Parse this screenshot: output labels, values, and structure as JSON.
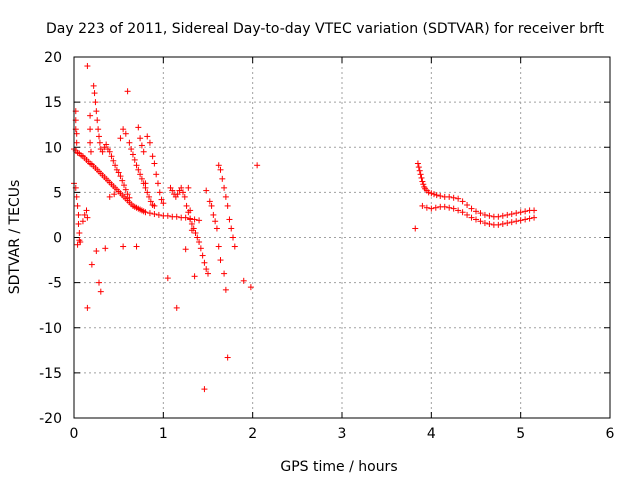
{
  "chart_data": {
    "type": "scatter",
    "title": "Day 223 of 2011, Sidereal Day-to-day VTEC variation (SDTVAR) for receiver brft",
    "xlabel": "GPS time / hours",
    "ylabel": "SDTVAR / TECUs",
    "xlim": [
      0,
      6
    ],
    "ylim": [
      -20,
      20
    ],
    "xticks": [
      0,
      1,
      2,
      3,
      4,
      5,
      6
    ],
    "yticks": [
      -20,
      -15,
      -10,
      -5,
      0,
      5,
      10,
      15,
      20
    ],
    "grid": true,
    "marker": "+",
    "color": "#ff0000",
    "series": [
      {
        "name": "SDTVAR",
        "points": [
          [
            0.0,
            9.8
          ],
          [
            0.02,
            9.6
          ],
          [
            0.04,
            9.4
          ],
          [
            0.06,
            9.3
          ],
          [
            0.08,
            9.1
          ],
          [
            0.1,
            9.0
          ],
          [
            0.12,
            8.8
          ],
          [
            0.14,
            8.6
          ],
          [
            0.16,
            8.4
          ],
          [
            0.18,
            8.2
          ],
          [
            0.2,
            8.1
          ],
          [
            0.22,
            7.9
          ],
          [
            0.24,
            7.7
          ],
          [
            0.26,
            7.5
          ],
          [
            0.28,
            7.3
          ],
          [
            0.3,
            7.1
          ],
          [
            0.32,
            6.9
          ],
          [
            0.34,
            6.7
          ],
          [
            0.36,
            6.5
          ],
          [
            0.38,
            6.3
          ],
          [
            0.4,
            6.1
          ],
          [
            0.42,
            5.9
          ],
          [
            0.44,
            5.7
          ],
          [
            0.46,
            5.5
          ],
          [
            0.48,
            5.3
          ],
          [
            0.5,
            5.1
          ],
          [
            0.52,
            4.9
          ],
          [
            0.54,
            4.7
          ],
          [
            0.56,
            4.5
          ],
          [
            0.58,
            4.3
          ],
          [
            0.6,
            4.1
          ],
          [
            0.62,
            3.9
          ],
          [
            0.64,
            3.7
          ],
          [
            0.66,
            3.5
          ],
          [
            0.68,
            3.4
          ],
          [
            0.7,
            3.3
          ],
          [
            0.72,
            3.2
          ],
          [
            0.74,
            3.1
          ],
          [
            0.76,
            3.0
          ],
          [
            0.78,
            2.9
          ],
          [
            0.8,
            2.8
          ],
          [
            0.85,
            2.7
          ],
          [
            0.9,
            2.6
          ],
          [
            0.95,
            2.5
          ],
          [
            1.0,
            2.4
          ],
          [
            1.05,
            2.4
          ],
          [
            1.1,
            2.3
          ],
          [
            1.15,
            2.3
          ],
          [
            1.2,
            2.2
          ],
          [
            1.25,
            2.2
          ],
          [
            1.3,
            2.1
          ],
          [
            1.35,
            2.0
          ],
          [
            1.4,
            1.9
          ],
          [
            0.02,
            14.0
          ],
          [
            0.02,
            13.0
          ],
          [
            0.02,
            12.0
          ],
          [
            0.03,
            11.5
          ],
          [
            0.03,
            10.5
          ],
          [
            0.0,
            6.0
          ],
          [
            0.02,
            5.5
          ],
          [
            0.03,
            4.5
          ],
          [
            0.04,
            3.5
          ],
          [
            0.05,
            2.5
          ],
          [
            0.05,
            1.5
          ],
          [
            0.06,
            0.5
          ],
          [
            0.07,
            -0.5
          ],
          [
            0.04,
            -0.8
          ],
          [
            0.06,
            -0.3
          ],
          [
            0.1,
            1.8
          ],
          [
            0.12,
            2.5
          ],
          [
            0.14,
            3.0
          ],
          [
            0.15,
            2.2
          ],
          [
            0.15,
            19.0
          ],
          [
            0.18,
            13.5
          ],
          [
            0.18,
            12.0
          ],
          [
            0.18,
            10.5
          ],
          [
            0.19,
            9.5
          ],
          [
            0.22,
            16.8
          ],
          [
            0.23,
            16.0
          ],
          [
            0.24,
            15.0
          ],
          [
            0.25,
            14.0
          ],
          [
            0.26,
            13.0
          ],
          [
            0.27,
            12.0
          ],
          [
            0.28,
            11.2
          ],
          [
            0.29,
            10.5
          ],
          [
            0.3,
            9.8
          ],
          [
            0.32,
            9.5
          ],
          [
            0.34,
            10.0
          ],
          [
            0.36,
            10.3
          ],
          [
            0.38,
            9.8
          ],
          [
            0.4,
            9.5
          ],
          [
            0.42,
            9.0
          ],
          [
            0.44,
            8.5
          ],
          [
            0.46,
            8.0
          ],
          [
            0.48,
            7.5
          ],
          [
            0.5,
            7.2
          ],
          [
            0.52,
            6.8
          ],
          [
            0.54,
            6.3
          ],
          [
            0.56,
            5.8
          ],
          [
            0.58,
            5.3
          ],
          [
            0.6,
            4.8
          ],
          [
            0.62,
            4.4
          ],
          [
            0.52,
            11.0
          ],
          [
            0.55,
            12.0
          ],
          [
            0.58,
            11.5
          ],
          [
            0.6,
            16.2
          ],
          [
            0.62,
            10.5
          ],
          [
            0.64,
            9.8
          ],
          [
            0.66,
            9.2
          ],
          [
            0.68,
            8.6
          ],
          [
            0.7,
            8.0
          ],
          [
            0.72,
            7.5
          ],
          [
            0.74,
            7.0
          ],
          [
            0.76,
            6.5
          ],
          [
            0.78,
            6.0
          ],
          [
            0.8,
            5.5
          ],
          [
            0.82,
            5.0
          ],
          [
            0.84,
            4.5
          ],
          [
            0.86,
            4.0
          ],
          [
            0.88,
            3.6
          ],
          [
            0.72,
            12.2
          ],
          [
            0.74,
            11.0
          ],
          [
            0.76,
            10.2
          ],
          [
            0.78,
            9.5
          ],
          [
            0.82,
            11.2
          ],
          [
            0.85,
            10.5
          ],
          [
            0.88,
            9.0
          ],
          [
            0.9,
            8.2
          ],
          [
            0.92,
            7.0
          ],
          [
            0.94,
            6.0
          ],
          [
            0.96,
            5.0
          ],
          [
            0.98,
            4.2
          ],
          [
            1.08,
            5.5
          ],
          [
            1.1,
            5.2
          ],
          [
            1.12,
            4.8
          ],
          [
            1.14,
            4.5
          ],
          [
            1.16,
            4.8
          ],
          [
            1.18,
            5.2
          ],
          [
            1.2,
            5.5
          ],
          [
            1.22,
            5.0
          ],
          [
            1.24,
            4.5
          ],
          [
            1.26,
            3.5
          ],
          [
            1.28,
            2.8
          ],
          [
            1.3,
            2.0
          ],
          [
            1.32,
            1.5
          ],
          [
            1.34,
            1.0
          ],
          [
            1.36,
            0.5
          ],
          [
            1.38,
            0.0
          ],
          [
            1.4,
            -0.5
          ],
          [
            1.42,
            -1.2
          ],
          [
            1.44,
            -2.0
          ],
          [
            1.46,
            -2.8
          ],
          [
            1.48,
            -3.5
          ],
          [
            1.5,
            -4.0
          ],
          [
            1.28,
            5.5
          ],
          [
            1.3,
            3.0
          ],
          [
            1.32,
            0.8
          ],
          [
            1.48,
            5.2
          ],
          [
            1.52,
            4.0
          ],
          [
            1.54,
            3.5
          ],
          [
            1.56,
            2.5
          ],
          [
            1.58,
            1.8
          ],
          [
            1.6,
            1.0
          ],
          [
            1.62,
            -1.0
          ],
          [
            1.64,
            -2.5
          ],
          [
            1.62,
            8.0
          ],
          [
            1.64,
            7.5
          ],
          [
            1.66,
            6.5
          ],
          [
            1.68,
            5.5
          ],
          [
            1.7,
            4.5
          ],
          [
            1.72,
            3.5
          ],
          [
            1.74,
            2.0
          ],
          [
            1.76,
            1.0
          ],
          [
            1.78,
            0.0
          ],
          [
            1.8,
            -1.0
          ],
          [
            1.68,
            -4.0
          ],
          [
            1.7,
            -5.8
          ],
          [
            1.72,
            -13.3
          ],
          [
            1.46,
            -16.8
          ],
          [
            1.35,
            -4.3
          ],
          [
            1.25,
            -1.3
          ],
          [
            1.15,
            -7.8
          ],
          [
            1.05,
            -4.5
          ],
          [
            1.9,
            -4.8
          ],
          [
            1.98,
            -5.5
          ],
          [
            2.05,
            8.0
          ],
          [
            0.15,
            -7.8
          ],
          [
            0.2,
            -3.0
          ],
          [
            0.25,
            -1.5
          ],
          [
            0.28,
            -5.0
          ],
          [
            0.3,
            -6.0
          ],
          [
            0.35,
            -1.2
          ],
          [
            0.4,
            4.5
          ],
          [
            0.45,
            4.8
          ],
          [
            0.55,
            -1.0
          ],
          [
            0.7,
            -1.0
          ],
          [
            0.8,
            6.0
          ],
          [
            0.9,
            3.5
          ],
          [
            1.0,
            3.8
          ],
          [
            3.85,
            8.2
          ],
          [
            3.86,
            7.8
          ],
          [
            3.87,
            7.4
          ],
          [
            3.88,
            7.0
          ],
          [
            3.89,
            6.6
          ],
          [
            3.9,
            6.2
          ],
          [
            3.91,
            5.9
          ],
          [
            3.92,
            5.6
          ],
          [
            3.93,
            5.4
          ],
          [
            3.95,
            5.2
          ],
          [
            3.97,
            5.0
          ],
          [
            4.0,
            4.9
          ],
          [
            4.03,
            4.8
          ],
          [
            4.06,
            4.7
          ],
          [
            4.1,
            4.6
          ],
          [
            4.15,
            4.5
          ],
          [
            4.2,
            4.5
          ],
          [
            4.25,
            4.4
          ],
          [
            4.3,
            4.3
          ],
          [
            4.35,
            4.0
          ],
          [
            4.4,
            3.6
          ],
          [
            4.45,
            3.2
          ],
          [
            4.5,
            2.9
          ],
          [
            4.55,
            2.7
          ],
          [
            4.6,
            2.5
          ],
          [
            4.65,
            2.4
          ],
          [
            4.7,
            2.3
          ],
          [
            4.75,
            2.3
          ],
          [
            4.8,
            2.4
          ],
          [
            4.85,
            2.5
          ],
          [
            4.9,
            2.6
          ],
          [
            4.95,
            2.7
          ],
          [
            5.0,
            2.8
          ],
          [
            5.05,
            2.9
          ],
          [
            5.1,
            3.0
          ],
          [
            5.15,
            3.0
          ],
          [
            3.9,
            3.5
          ],
          [
            3.95,
            3.3
          ],
          [
            4.0,
            3.2
          ],
          [
            4.05,
            3.3
          ],
          [
            4.1,
            3.4
          ],
          [
            4.15,
            3.4
          ],
          [
            4.2,
            3.3
          ],
          [
            4.25,
            3.2
          ],
          [
            4.3,
            3.0
          ],
          [
            4.35,
            2.8
          ],
          [
            4.4,
            2.5
          ],
          [
            4.45,
            2.2
          ],
          [
            4.5,
            2.0
          ],
          [
            4.55,
            1.8
          ],
          [
            4.6,
            1.6
          ],
          [
            4.65,
            1.5
          ],
          [
            4.7,
            1.4
          ],
          [
            4.75,
            1.4
          ],
          [
            4.8,
            1.5
          ],
          [
            4.85,
            1.6
          ],
          [
            4.9,
            1.7
          ],
          [
            4.95,
            1.8
          ],
          [
            5.0,
            1.9
          ],
          [
            5.05,
            2.0
          ],
          [
            5.1,
            2.1
          ],
          [
            5.15,
            2.2
          ],
          [
            3.82,
            1.0
          ]
        ]
      }
    ]
  }
}
